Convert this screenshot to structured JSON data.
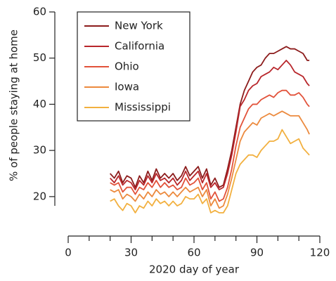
{
  "chart_data": {
    "type": "line",
    "x_label": "2020 day of year",
    "y_label": "% of people staying at home",
    "x": [
      20,
      22,
      24,
      26,
      28,
      30,
      32,
      34,
      36,
      38,
      40,
      42,
      44,
      46,
      48,
      50,
      52,
      54,
      56,
      58,
      60,
      62,
      64,
      66,
      68,
      70,
      72,
      74,
      76,
      78,
      80,
      82,
      84,
      86,
      88,
      90,
      92,
      94,
      96,
      98,
      100,
      102,
      104,
      106,
      108,
      110,
      112,
      114,
      115
    ],
    "series": [
      {
        "name": "New York",
        "color": "#8c1c1c",
        "values": [
          25,
          24,
          25.5,
          23,
          24.5,
          24,
          22,
          24.5,
          23,
          25.5,
          23.5,
          26,
          24,
          25,
          24,
          25,
          23.5,
          24.5,
          26.5,
          24.5,
          25.5,
          26.5,
          24,
          26,
          22.5,
          24,
          22,
          22.5,
          26,
          30,
          35,
          40,
          43,
          45,
          47,
          48,
          48.5,
          50,
          51,
          51,
          51.5,
          52,
          52.5,
          52,
          52,
          51.5,
          51,
          49.5,
          49.5
        ]
      },
      {
        "name": "California",
        "color": "#b8262b",
        "values": [
          24,
          23,
          24.5,
          22.5,
          23.5,
          23,
          21.5,
          23.5,
          22.5,
          24.5,
          23,
          25,
          23.5,
          24,
          23,
          24,
          22.5,
          23.5,
          25.5,
          23.5,
          24.5,
          25.5,
          23,
          25,
          22,
          23,
          21.5,
          22,
          25,
          29,
          34,
          39.5,
          41,
          43,
          44,
          44.5,
          46,
          46.5,
          47,
          48,
          47.5,
          48.5,
          49.5,
          48.5,
          47,
          46.5,
          46,
          44.5,
          44
        ]
      },
      {
        "name": "Ohio",
        "color": "#e2523a",
        "values": [
          23,
          22.5,
          23,
          21,
          22,
          22,
          20.5,
          22,
          21.5,
          23,
          22,
          23.5,
          22,
          23,
          22,
          22.5,
          21.5,
          22,
          24,
          22.5,
          23,
          24,
          21.5,
          23,
          19.5,
          21,
          19,
          19.5,
          22,
          26,
          31,
          35,
          37,
          39,
          40,
          40,
          41,
          41.5,
          42,
          41.5,
          42.5,
          43,
          43,
          42,
          42,
          42.5,
          41.5,
          40,
          39.5
        ]
      },
      {
        "name": "Iowa",
        "color": "#ec8a3e",
        "values": [
          21.5,
          21,
          21.5,
          19.5,
          20.5,
          20,
          19,
          20.5,
          19.5,
          21,
          20,
          21.5,
          20.5,
          21,
          20,
          21,
          20,
          21,
          22,
          21,
          21.5,
          22,
          20,
          21.5,
          18,
          19.5,
          17.5,
          18,
          20.5,
          24,
          28,
          32,
          34,
          35,
          36,
          35.5,
          37,
          37.5,
          38,
          37.5,
          38,
          38.5,
          38,
          37.5,
          37.5,
          37.5,
          36,
          34.5,
          33.5
        ]
      },
      {
        "name": "Mississippi",
        "color": "#f2b03f",
        "values": [
          19,
          19.5,
          18,
          17,
          18.5,
          18,
          16.5,
          18,
          17.5,
          19,
          18,
          19.5,
          18.5,
          19,
          18,
          19,
          18,
          18.5,
          20,
          19.5,
          19.5,
          20.5,
          18.5,
          19.5,
          16.5,
          17,
          16.5,
          16.5,
          18,
          21.5,
          25,
          27,
          28,
          29,
          29,
          28.5,
          30,
          31,
          32,
          32,
          32.5,
          34.5,
          33,
          31.5,
          32,
          32.5,
          30.5,
          29.5,
          29
        ]
      }
    ],
    "xlim": [
      0,
      120
    ],
    "xticks": [
      0,
      30,
      60,
      90,
      120
    ],
    "xminorticks": [
      10,
      20,
      40,
      50,
      70,
      80,
      100,
      110
    ],
    "ylim": [
      18,
      60
    ],
    "yticks": [
      20,
      30,
      40,
      50,
      60
    ],
    "legend": "upper-left",
    "grid": false
  }
}
